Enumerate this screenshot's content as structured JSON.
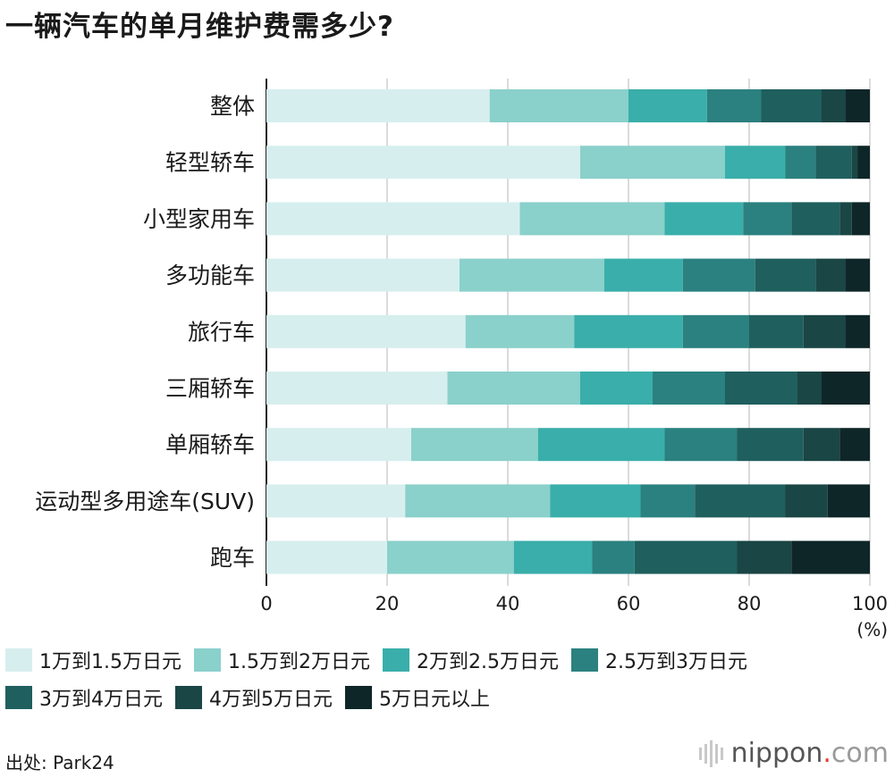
{
  "title": "一辆汽车的单月维护费需多少?",
  "source": "出处: Park24",
  "brand": {
    "name": "nippon",
    "dot": ".",
    "suffix": "com"
  },
  "colors": [
    "#d7eeee",
    "#8ad0cb",
    "#3aaeaa",
    "#2b817f",
    "#1f5f5e",
    "#1a4645",
    "#0f2628"
  ],
  "chart_data": {
    "type": "bar",
    "orientation": "horizontal",
    "stacked": true,
    "title": "一辆汽车的单月维护费需多少?",
    "unit_label": "(%)",
    "xlim": [
      0,
      100
    ],
    "xticks": [
      0,
      20,
      40,
      60,
      80,
      100
    ],
    "grid": true,
    "legend_position": "bottom",
    "categories": [
      "整体",
      "轻型轿车",
      "小型家用车",
      "多功能车",
      "旅行车",
      "三厢轿车",
      "单厢轿车",
      "运动型多用途车(SUV)",
      "跑车"
    ],
    "series": [
      {
        "name": "1万到1.5万日元",
        "values": [
          37,
          52,
          42,
          32,
          33,
          30,
          24,
          23,
          20
        ]
      },
      {
        "name": "1.5万到2万日元",
        "values": [
          23,
          24,
          24,
          24,
          18,
          22,
          21,
          24,
          21
        ]
      },
      {
        "name": "2万到2.5万日元",
        "values": [
          13,
          10,
          13,
          13,
          18,
          12,
          21,
          15,
          13
        ]
      },
      {
        "name": "2.5万到3万日元",
        "values": [
          9,
          5,
          8,
          12,
          11,
          12,
          12,
          9,
          7
        ]
      },
      {
        "name": "3万到4万日元",
        "values": [
          10,
          6,
          8,
          10,
          9,
          12,
          11,
          15,
          17
        ]
      },
      {
        "name": "4万到5万日元",
        "values": [
          4,
          1,
          2,
          5,
          7,
          4,
          6,
          7,
          9
        ]
      },
      {
        "name": "5万日元以上",
        "values": [
          4,
          2,
          3,
          4,
          4,
          8,
          5,
          7,
          13
        ]
      }
    ]
  }
}
